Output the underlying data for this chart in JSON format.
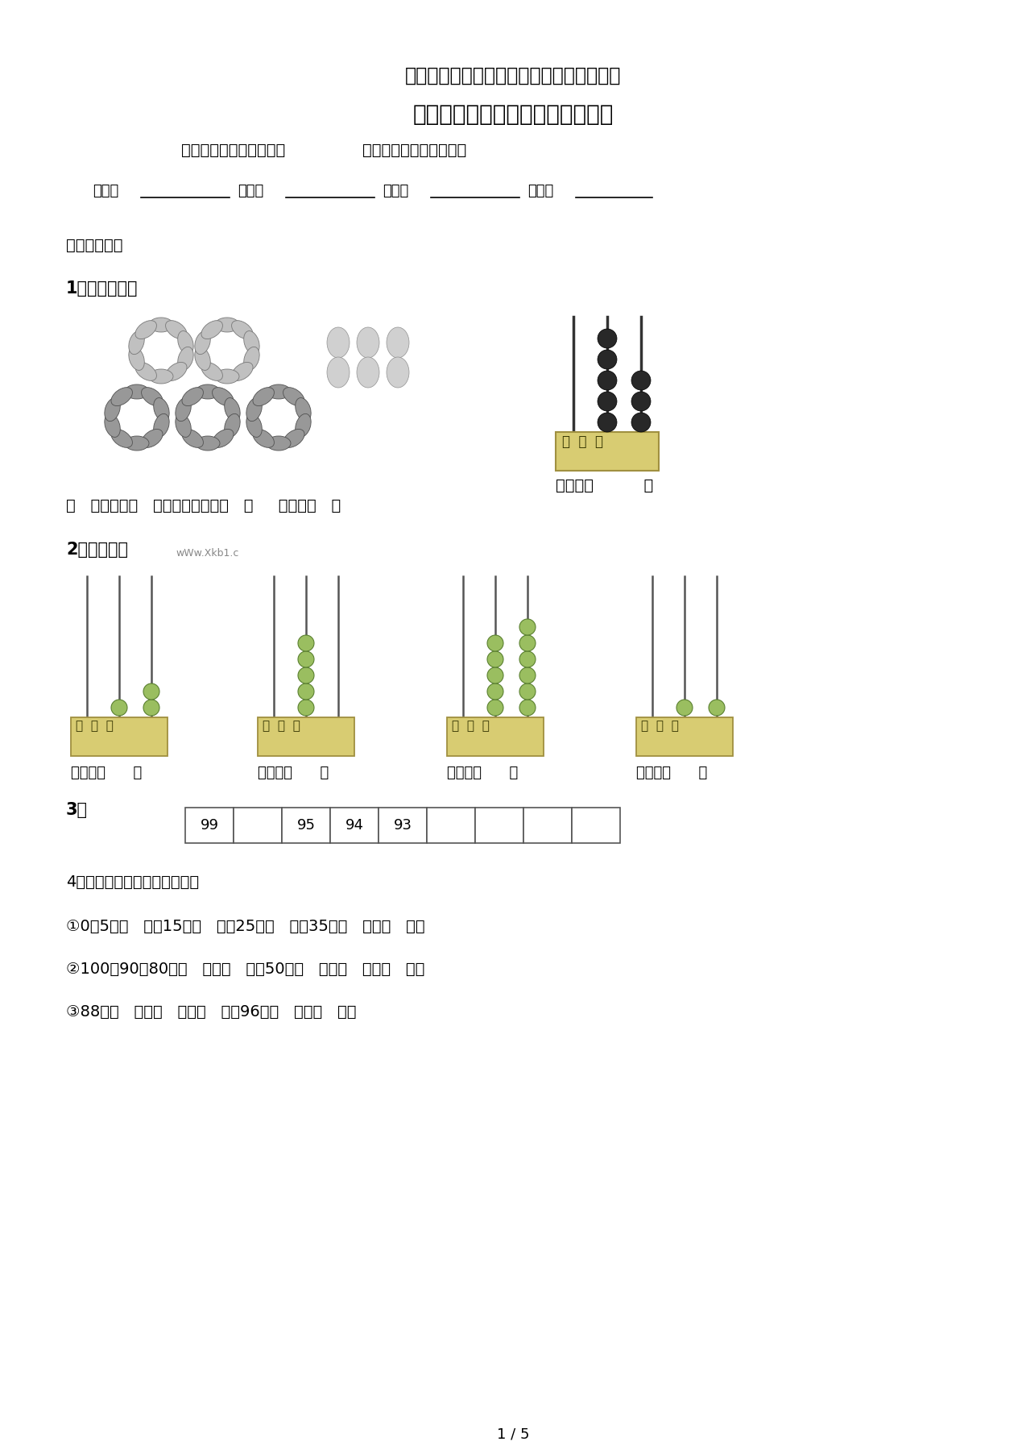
{
  "title1": "北师大版一年级数学下册第三四单元测试题",
  "title2": "小学一年级数学单元训练题（二）",
  "subtitle_left": "【第三单元：生活中的数",
  "subtitle_right": "第四单元：有趣的图形】",
  "field1": "姓名：",
  "field2": "班级：",
  "field3": "坐号：",
  "field4": "评价：",
  "section1": "一、填空题。",
  "q1_label": "1、看图填写。",
  "q1_read": "读作：（          ）",
  "q1_bottom": "（   ）个十和（   ）个一合起来是（   ）     写作：（   ）",
  "q2_label": "2、写一写。",
  "q2_watermark": "wWw.Xkb1.c",
  "q2_write1": "写作：（      ）",
  "q2_write2": "写作：（      ）",
  "q2_write3": "写作：（      ）",
  "q2_write4": "写作：（      ）",
  "q3_label": "3、",
  "q4_label": "4、数字接龙。（找规律填数）",
  "q4_line1": "①0、5、（   ）、15、（   ）、25、（   ）、35、（   ）、（   ）。",
  "q4_line2": "②100、90、80、（   ）、（   ）、50、（   ）、（   ）、（   ）。",
  "q4_line3": "③88、（   ）、（   ）、（   ）、96、（   ）、（   ）。",
  "page_num": "1 / 5",
  "bg_color": "#ffffff",
  "abacus_bg": "#d8cc72",
  "abacus_border": "#a09040",
  "bead_dark": "#282828",
  "bead_green": "#9abe60",
  "bead_green_edge": "#5a8030",
  "table_border": "#555555",
  "q3_filled": {
    "0": "99",
    "2": "95",
    "3": "94",
    "4": "93"
  },
  "q2_abacus_data": [
    [
      1,
      2
    ],
    [
      5,
      0
    ],
    [
      5,
      6
    ],
    [
      1,
      1
    ]
  ],
  "abacus1_tens": 5,
  "abacus1_ones": 3
}
